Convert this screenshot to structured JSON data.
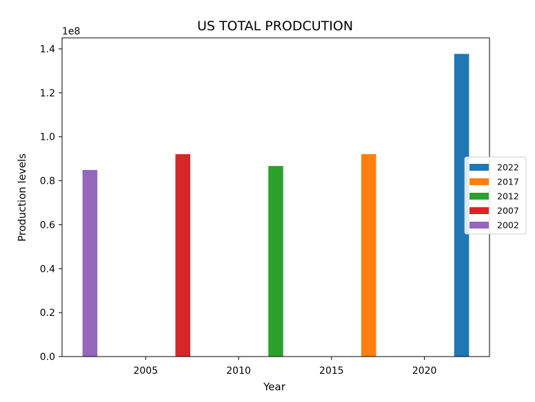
{
  "chart_data": {
    "type": "bar",
    "title": "US TOTAL PRODCUTION",
    "xlabel": "Year",
    "ylabel": "Production levels",
    "y_offset_label": "1e8",
    "y_scale": 100000000,
    "xlim": [
      2000.5,
      2023.5
    ],
    "ylim": [
      0,
      1.45
    ],
    "x_ticks": [
      2005,
      2010,
      2015,
      2020
    ],
    "y_ticks": [
      0.0,
      0.2,
      0.4,
      0.6,
      0.8,
      1.0,
      1.2,
      1.4
    ],
    "y_tick_labels": [
      "0.0",
      "0.2",
      "0.4",
      "0.6",
      "0.8",
      "1.0",
      "1.2",
      "1.4"
    ],
    "grid": false,
    "legend_position": "center-right",
    "series": [
      {
        "name": "2022",
        "x": 2022,
        "value": 137700000,
        "color": "#1f77b4"
      },
      {
        "name": "2017",
        "x": 2017,
        "value": 92100000,
        "color": "#ff7f0e"
      },
      {
        "name": "2012",
        "x": 2012,
        "value": 86700000,
        "color": "#2ca02c"
      },
      {
        "name": "2007",
        "x": 2007,
        "value": 92100000,
        "color": "#d62728"
      },
      {
        "name": "2002",
        "x": 2002,
        "value": 84900000,
        "color": "#9467bd"
      }
    ]
  }
}
